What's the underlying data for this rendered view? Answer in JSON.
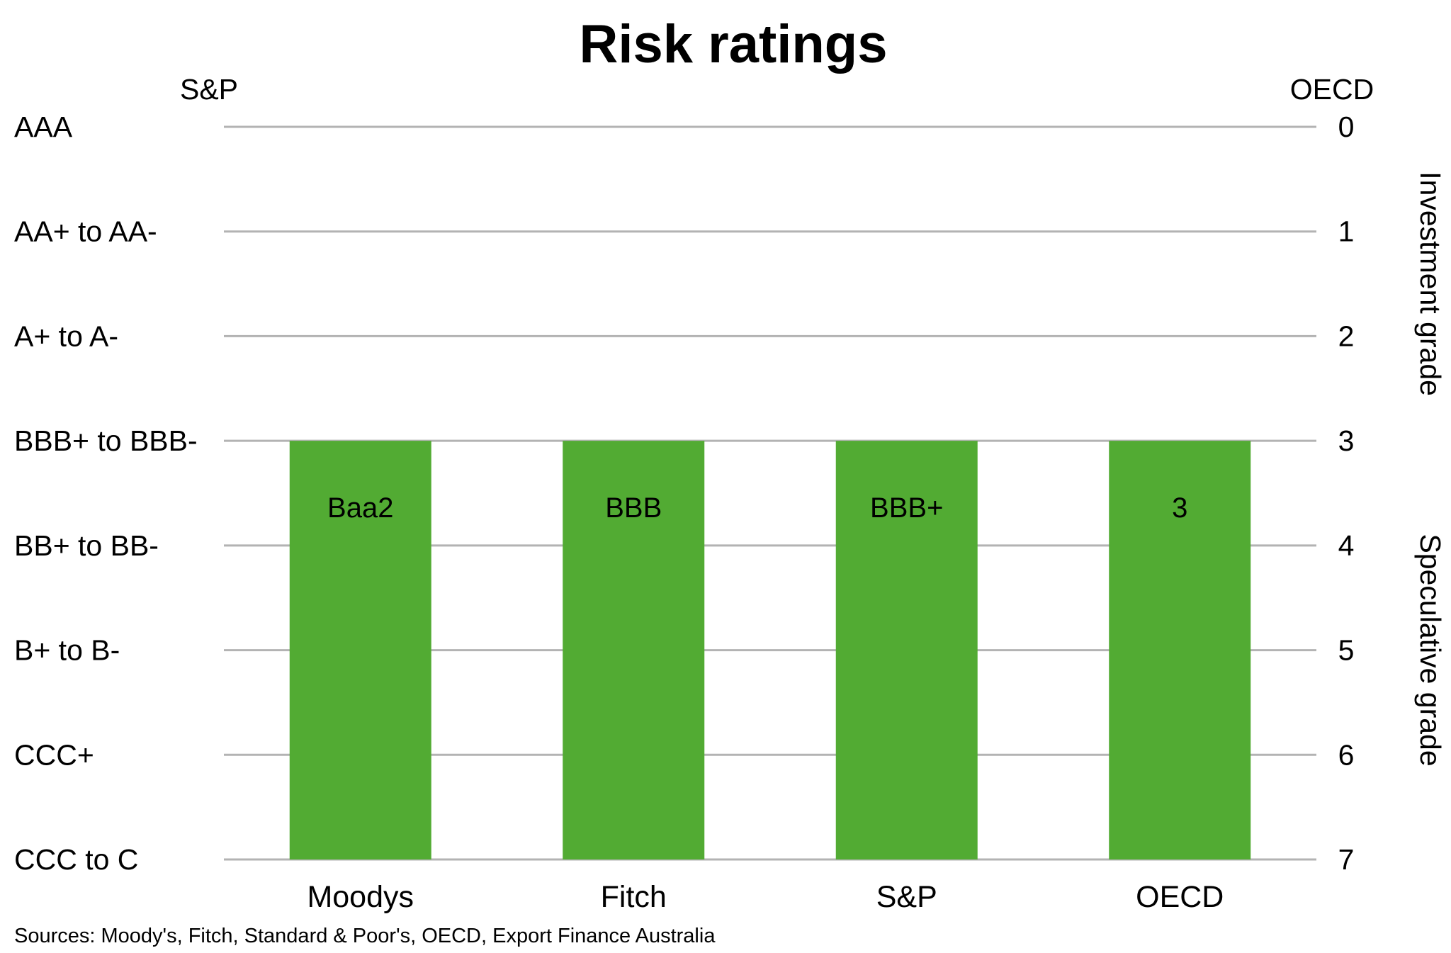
{
  "chart_data": {
    "type": "bar",
    "title": "Risk ratings",
    "left_axis_name": "S&P",
    "right_axis_name": "OECD",
    "left_ticks": [
      "AAA",
      "AA+ to AA-",
      "A+ to A-",
      "BBB+ to BBB-",
      "BB+ to BB-",
      "B+ to B-",
      "CCC+",
      "CCC to C"
    ],
    "right_ticks": [
      "0",
      "1",
      "2",
      "3",
      "4",
      "5",
      "6",
      "7"
    ],
    "ylim": [
      0,
      7
    ],
    "y_inverted": true,
    "grid": true,
    "categories": [
      "Moodys",
      "Fitch",
      "S&P",
      "OECD"
    ],
    "values": [
      3,
      3,
      3,
      3
    ],
    "bar_labels": [
      "Baa2",
      "BBB",
      "BBB+",
      "3"
    ],
    "bands": [
      {
        "label": "Investment grade",
        "from": 0,
        "to": 3
      },
      {
        "label": "Speculative grade",
        "from": 3,
        "to": 7
      }
    ],
    "bar_color": "#52ab33",
    "grid_color": "#b3b3b3",
    "source": "Sources: Moody's, Fitch, Standard & Poor's, OECD, Export Finance Australia"
  }
}
